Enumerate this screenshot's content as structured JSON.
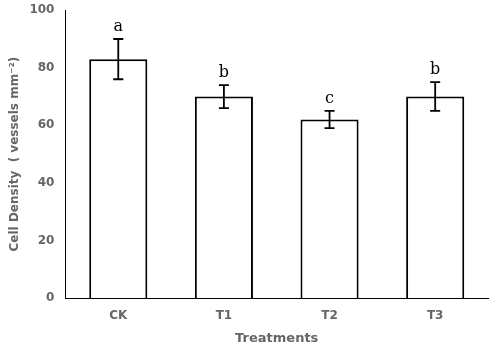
{
  "chart_data": {
    "type": "bar",
    "categories": [
      "CK",
      "T1",
      "T2",
      "T3"
    ],
    "values": [
      83,
      70,
      62,
      70
    ],
    "errors": [
      7,
      4,
      3,
      5
    ],
    "letters": [
      "a",
      "b",
      "c",
      "b"
    ],
    "color": "#ffffff",
    "xlabel": "Treatments",
    "ylabel": "Cell Density  ( vessels mm⁻²)",
    "ylim": [
      0,
      100
    ],
    "yticks": [
      0,
      20,
      40,
      60,
      80,
      100
    ],
    "grid": false
  }
}
